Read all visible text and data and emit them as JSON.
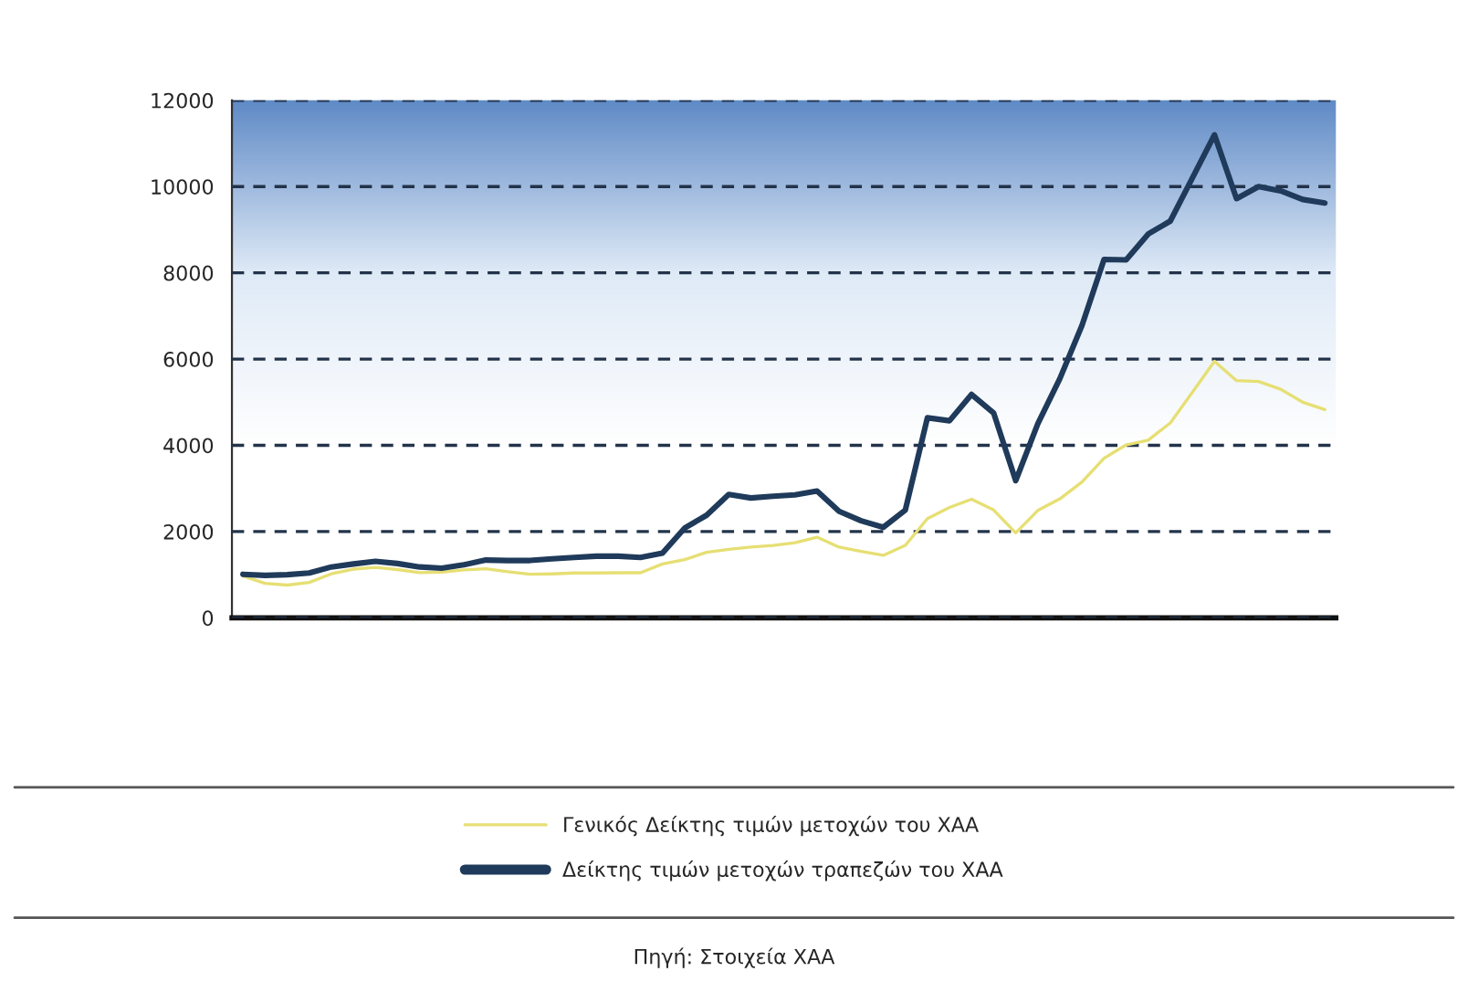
{
  "chart_data": {
    "type": "line",
    "categories": [
      null,
      null,
      null,
      null,
      null,
      null,
      null,
      null,
      null,
      null,
      null,
      null,
      null,
      null,
      null,
      null,
      null,
      null,
      null,
      null,
      null,
      null,
      null,
      null,
      null,
      null,
      null,
      null,
      null,
      null,
      null,
      null,
      null,
      null,
      null,
      null,
      null,
      null,
      null,
      null,
      null,
      null,
      null,
      null,
      null,
      null,
      null,
      null,
      null,
      null
    ],
    "series": [
      {
        "name": "Γενικός Δείκτης τιμών μετοχών του ΧΑΑ",
        "color": "#e6df73",
        "values": [
          970,
          800,
          760,
          820,
          1020,
          1130,
          1170,
          1120,
          1050,
          1060,
          1110,
          1140,
          1070,
          1010,
          1020,
          1040,
          1040,
          1045,
          1045,
          1250,
          1350,
          1520,
          1590,
          1640,
          1680,
          1740,
          1870,
          1640,
          1540,
          1450,
          1680,
          2300,
          2560,
          2750,
          2500,
          1970,
          2490,
          2760,
          3150,
          3700,
          4010,
          4120,
          4520,
          5230,
          5950,
          5500,
          5480,
          5300,
          5000,
          4830
        ]
      },
      {
        "name": "Δείκτης τιμών μετοχών τραπεζών του ΧΑΑ",
        "color": "#1f3a5a",
        "values": [
          1010,
          985,
          1000,
          1040,
          1180,
          1250,
          1310,
          1260,
          1180,
          1150,
          1230,
          1340,
          1330,
          1330,
          1370,
          1400,
          1430,
          1430,
          1400,
          1500,
          2080,
          2380,
          2860,
          2780,
          2820,
          2850,
          2940,
          2470,
          2250,
          2100,
          2500,
          4640,
          4570,
          5180,
          4750,
          3180,
          4500,
          5550,
          6780,
          8310,
          8300,
          8900,
          9200,
          10200,
          11200,
          9720,
          10000,
          9900,
          9700,
          9620
        ]
      }
    ],
    "ylim": [
      0,
      12000
    ],
    "yticks": [
      0,
      2000,
      4000,
      6000,
      8000,
      10000,
      12000
    ],
    "grid": "y",
    "legend": "bottom",
    "line_style": "solid",
    "marker": "none",
    "annotations": [
      "Πηγή: Στοιχεία ΧΑΑ"
    ]
  }
}
